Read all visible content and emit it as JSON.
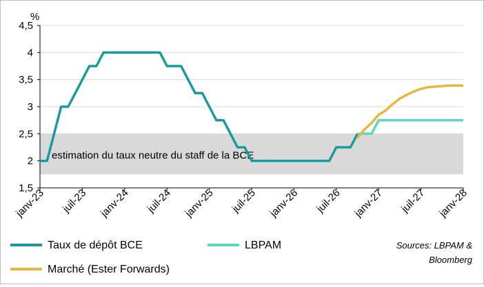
{
  "chart_data": {
    "type": "line",
    "unit_label": "%",
    "y_axis": {
      "min": 1.5,
      "max": 4.5,
      "step": 0.5,
      "tick_labels": [
        "1,5",
        "2",
        "2,5",
        "3",
        "3,5",
        "4",
        "4,5"
      ]
    },
    "x_axis": {
      "min": "2023-01",
      "max": "2028-01",
      "tick_labels": [
        "janv-23",
        "juil-23",
        "janv-24",
        "juil-24",
        "janv-25",
        "juil-25",
        "janv-26",
        "juil-26",
        "janv-27",
        "juil-27",
        "janv-28"
      ]
    },
    "band": {
      "label": "estimation du taux neutre du staff de la BCE",
      "from": 1.75,
      "to": 2.5,
      "color": "#d9d9d9"
    },
    "series": [
      {
        "name": "Taux de dépôt BCE",
        "color": "#1a9a9c",
        "points": [
          [
            "2023-01",
            2.0
          ],
          [
            "2023-02",
            2.0
          ],
          [
            "2023-03",
            2.5
          ],
          [
            "2023-04",
            3.0
          ],
          [
            "2023-05",
            3.0
          ],
          [
            "2023-06",
            3.25
          ],
          [
            "2023-07",
            3.5
          ],
          [
            "2023-08",
            3.75
          ],
          [
            "2023-09",
            3.75
          ],
          [
            "2023-10",
            4.0
          ],
          [
            "2023-11",
            4.0
          ],
          [
            "2023-12",
            4.0
          ],
          [
            "2024-01",
            4.0
          ],
          [
            "2024-02",
            4.0
          ],
          [
            "2024-03",
            4.0
          ],
          [
            "2024-04",
            4.0
          ],
          [
            "2024-05",
            4.0
          ],
          [
            "2024-06",
            4.0
          ],
          [
            "2024-07",
            3.75
          ],
          [
            "2024-08",
            3.75
          ],
          [
            "2024-09",
            3.75
          ],
          [
            "2024-10",
            3.5
          ],
          [
            "2024-11",
            3.25
          ],
          [
            "2024-12",
            3.25
          ],
          [
            "2025-01",
            3.0
          ],
          [
            "2025-02",
            2.75
          ],
          [
            "2025-03",
            2.75
          ],
          [
            "2025-04",
            2.5
          ],
          [
            "2025-05",
            2.25
          ],
          [
            "2025-06",
            2.25
          ],
          [
            "2025-07",
            2.0
          ],
          [
            "2025-08",
            2.0
          ],
          [
            "2025-09",
            2.0
          ],
          [
            "2025-10",
            2.0
          ],
          [
            "2025-11",
            2.0
          ],
          [
            "2025-12",
            2.0
          ],
          [
            "2026-01",
            2.0
          ],
          [
            "2026-02",
            2.0
          ],
          [
            "2026-03",
            2.0
          ],
          [
            "2026-04",
            2.0
          ],
          [
            "2026-05",
            2.0
          ],
          [
            "2026-06",
            2.0
          ],
          [
            "2026-07",
            2.25
          ],
          [
            "2026-08",
            2.25
          ],
          [
            "2026-09",
            2.25
          ],
          [
            "2026-10",
            2.5
          ]
        ]
      },
      {
        "name": "LBPAM",
        "color": "#5fd6be",
        "points": [
          [
            "2026-10",
            2.5
          ],
          [
            "2026-11",
            2.5
          ],
          [
            "2026-12",
            2.5
          ],
          [
            "2027-01",
            2.75
          ],
          [
            "2027-02",
            2.75
          ],
          [
            "2027-03",
            2.75
          ],
          [
            "2027-04",
            2.75
          ],
          [
            "2027-05",
            2.75
          ],
          [
            "2027-06",
            2.75
          ],
          [
            "2027-07",
            2.75
          ],
          [
            "2027-08",
            2.75
          ],
          [
            "2027-09",
            2.75
          ],
          [
            "2027-10",
            2.75
          ],
          [
            "2027-11",
            2.75
          ],
          [
            "2027-12",
            2.75
          ],
          [
            "2028-01",
            2.75
          ]
        ]
      },
      {
        "name": "Marché (Ester Forwards)",
        "color": "#e3b83d",
        "points": [
          [
            "2026-10",
            2.42
          ],
          [
            "2026-11",
            2.58
          ],
          [
            "2026-12",
            2.7
          ],
          [
            "2027-01",
            2.85
          ],
          [
            "2027-02",
            2.93
          ],
          [
            "2027-03",
            3.05
          ],
          [
            "2027-04",
            3.15
          ],
          [
            "2027-05",
            3.22
          ],
          [
            "2027-06",
            3.28
          ],
          [
            "2027-07",
            3.33
          ],
          [
            "2027-08",
            3.36
          ],
          [
            "2027-09",
            3.37
          ],
          [
            "2027-10",
            3.38
          ],
          [
            "2027-11",
            3.39
          ],
          [
            "2027-12",
            3.39
          ],
          [
            "2028-01",
            3.39
          ]
        ]
      }
    ],
    "gridlines": "horizontal",
    "legend_position": "bottom",
    "source": "Sources: LBPAM & Bloomberg"
  }
}
